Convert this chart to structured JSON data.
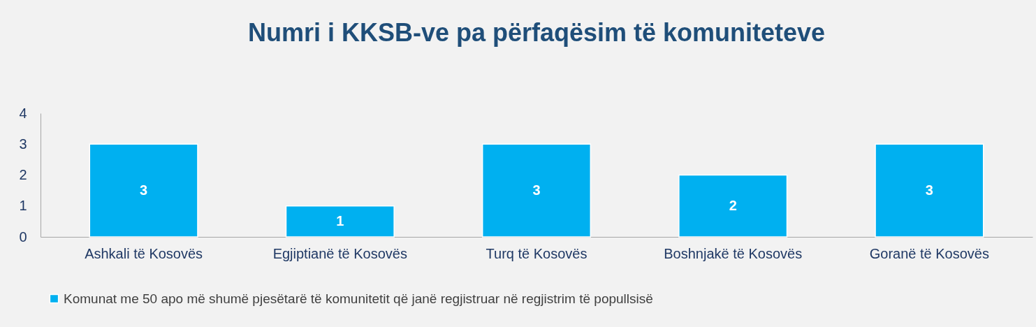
{
  "chart_data": {
    "type": "bar",
    "title": "Numri i KKSB-ve pa përfaqësim të komuniteteve",
    "categories": [
      "Ashkali të Kosovës",
      "Egjiptianë të Kosovës",
      "Turq të Kosovës",
      "Boshnjakë të Kosovës",
      "Goranë të Kosovës"
    ],
    "series": [
      {
        "name": "Komunat me 50 apo më shumë pjesëtarë të komunitetit që janë regjistruar në regjistrim të popullsisë",
        "color": "#00b0f0",
        "values": [
          3,
          1,
          3,
          2,
          3
        ]
      }
    ],
    "ylim": [
      0,
      4
    ],
    "yticks": [
      0,
      1,
      2,
      3,
      4
    ],
    "grid": false,
    "legend": "bottom",
    "data_labels": true
  }
}
